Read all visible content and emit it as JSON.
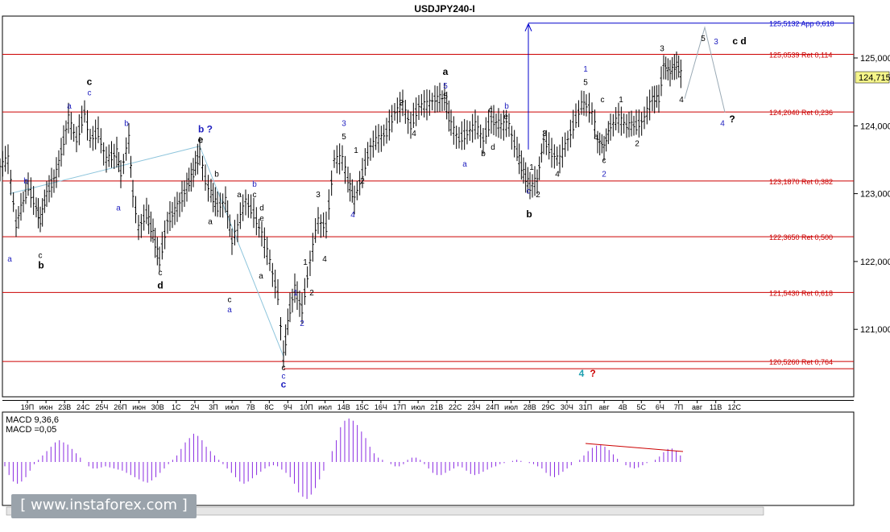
{
  "window": {
    "title": "USDJPY240-I"
  },
  "chart_data": {
    "type": "candlestick",
    "symbol": "USDJPY240-I",
    "price_axis": {
      "min": 120.0,
      "max": 125.5,
      "ticks": [
        "125,000",
        "124,000",
        "123,000",
        "122,000",
        "121,000"
      ],
      "tick_values": [
        125,
        124,
        123,
        122,
        121
      ]
    },
    "current_price": {
      "label": "124,715",
      "value": 124.715
    },
    "levels": [
      {
        "label": "125,5132 App 0,618",
        "value": 125.5132,
        "color": "#0000cc"
      },
      {
        "label": "125,0539 Ret 0,114",
        "value": 125.0539,
        "color": "#cc0000"
      },
      {
        "label": "124,2040 Ret 0,236",
        "value": 124.204,
        "color": "#cc0000"
      },
      {
        "label": "123,1870 Ret 0,382",
        "value": 123.187,
        "color": "#cc0000"
      },
      {
        "label": "122,3650 Ret 0,500",
        "value": 122.365,
        "color": "#cc0000"
      },
      {
        "label": "121,5430 Ret 0,618",
        "value": 121.543,
        "color": "#cc0000"
      },
      {
        "label": "120,5260 Ret 0,764",
        "value": 120.526,
        "color": "#cc0000"
      }
    ],
    "time_labels": [
      "19П",
      "июн",
      "23В",
      "24С",
      "25Ч",
      "26П",
      "июн",
      "30В",
      "1С",
      "2Ч",
      "3П",
      "июл",
      "7В",
      "8С",
      "9Ч",
      "10П",
      "июл",
      "14В",
      "15С",
      "16Ч",
      "17П",
      "июл",
      "21В",
      "22С",
      "23Ч",
      "24П",
      "июл",
      "28В",
      "29С",
      "30Ч",
      "31П",
      "авг",
      "4В",
      "5С",
      "6Ч",
      "7П",
      "авг",
      "11В",
      "12С"
    ],
    "price_path": [
      [
        0,
        123.4
      ],
      [
        10,
        123.5
      ],
      [
        20,
        122.55
      ],
      [
        35,
        123.1
      ],
      [
        45,
        122.8
      ],
      [
        50,
        122.6
      ],
      [
        58,
        123.0
      ],
      [
        70,
        123.3
      ],
      [
        85,
        124.1
      ],
      [
        95,
        123.8
      ],
      [
        105,
        124.2
      ],
      [
        112,
        123.8
      ],
      [
        122,
        123.9
      ],
      [
        132,
        123.5
      ],
      [
        145,
        123.6
      ],
      [
        150,
        123.3
      ],
      [
        160,
        123.8
      ],
      [
        165,
        123.0
      ],
      [
        172,
        122.5
      ],
      [
        182,
        122.7
      ],
      [
        190,
        122.4
      ],
      [
        198,
        122.0
      ],
      [
        208,
        122.6
      ],
      [
        220,
        122.8
      ],
      [
        232,
        123.1
      ],
      [
        240,
        123.3
      ],
      [
        248,
        123.6
      ],
      [
        255,
        123.2
      ],
      [
        262,
        123.0
      ],
      [
        270,
        122.8
      ],
      [
        280,
        122.9
      ],
      [
        288,
        122.3
      ],
      [
        295,
        122.5
      ],
      [
        305,
        122.9
      ],
      [
        315,
        122.7
      ],
      [
        325,
        122.4
      ],
      [
        335,
        122.0
      ],
      [
        345,
        121.5
      ],
      [
        352,
        120.6
      ],
      [
        360,
        121.3
      ],
      [
        366,
        121.6
      ],
      [
        375,
        121.3
      ],
      [
        385,
        122.0
      ],
      [
        395,
        122.6
      ],
      [
        405,
        122.5
      ],
      [
        415,
        123.5
      ],
      [
        425,
        123.5
      ],
      [
        432,
        123.2
      ],
      [
        440,
        122.9
      ],
      [
        450,
        123.3
      ],
      [
        460,
        123.7
      ],
      [
        470,
        123.8
      ],
      [
        480,
        123.9
      ],
      [
        490,
        124.2
      ],
      [
        500,
        124.3
      ],
      [
        510,
        124.0
      ],
      [
        520,
        124.3
      ],
      [
        530,
        124.3
      ],
      [
        540,
        124.4
      ],
      [
        552,
        124.4
      ],
      [
        560,
        124.0
      ],
      [
        570,
        123.8
      ],
      [
        580,
        123.9
      ],
      [
        590,
        124.0
      ],
      [
        600,
        123.8
      ],
      [
        610,
        124.1
      ],
      [
        622,
        124.0
      ],
      [
        632,
        124.0
      ],
      [
        642,
        123.6
      ],
      [
        650,
        123.3
      ],
      [
        658,
        123.1
      ],
      [
        667,
        123.2
      ],
      [
        675,
        123.8
      ],
      [
        685,
        123.6
      ],
      [
        695,
        123.5
      ],
      [
        705,
        123.8
      ],
      [
        715,
        124.1
      ],
      [
        722,
        124.3
      ],
      [
        728,
        124.3
      ],
      [
        735,
        124.2
      ],
      [
        742,
        123.8
      ],
      [
        750,
        123.7
      ],
      [
        758,
        124.0
      ],
      [
        768,
        124.1
      ],
      [
        778,
        124.0
      ],
      [
        790,
        124.0
      ],
      [
        800,
        124.1
      ],
      [
        810,
        124.4
      ],
      [
        818,
        124.4
      ],
      [
        824,
        124.9
      ],
      [
        832,
        124.8
      ],
      [
        840,
        124.9
      ],
      [
        848,
        124.7
      ]
    ],
    "projections": [
      {
        "path": [
          [
            850,
            124.4
          ],
          [
            875,
            125.45
          ],
          [
            900,
            124.2
          ]
        ],
        "color": "#9aaab5"
      },
      {
        "path": [
          [
            12,
            123.0
          ],
          [
            248,
            123.7
          ],
          [
            352,
            120.6
          ]
        ],
        "color": "#8ec5dc"
      }
    ],
    "wave_labels": [
      {
        "t": "a",
        "x": 12,
        "v": 122.0,
        "c": "#1f1fbf"
      },
      {
        "t": "b",
        "x": 32,
        "v": 123.15,
        "c": "#1f1fbf"
      },
      {
        "t": "c",
        "x": 50,
        "v": 122.05,
        "c": "#000"
      },
      {
        "t": "b",
        "x": 51,
        "v": 121.9,
        "c": "#000",
        "b": true
      },
      {
        "t": "a",
        "x": 86,
        "v": 124.25,
        "c": "#1f1fbf"
      },
      {
        "t": "c",
        "x": 111,
        "v": 124.45,
        "c": "#1f1fbf"
      },
      {
        "t": "c",
        "x": 111,
        "v": 124.6,
        "c": "#000",
        "b": true
      },
      {
        "t": "b",
        "x": 157,
        "v": 124.0,
        "c": "#1f1fbf"
      },
      {
        "t": "a",
        "x": 147,
        "v": 122.75,
        "c": "#1f1fbf"
      },
      {
        "t": "b ?",
        "x": 255,
        "v": 123.9,
        "c": "#1f1fbf",
        "b": true
      },
      {
        "t": "e",
        "x": 249,
        "v": 123.75,
        "c": "#000",
        "b": true
      },
      {
        "t": "c",
        "x": 199,
        "v": 121.8,
        "c": "#000"
      },
      {
        "t": "d",
        "x": 199,
        "v": 121.6,
        "c": "#000",
        "b": true
      },
      {
        "t": "b",
        "x": 269,
        "v": 123.25,
        "c": "#000"
      },
      {
        "t": "a",
        "x": 261,
        "v": 122.55,
        "c": "#000"
      },
      {
        "t": "c",
        "x": 285,
        "v": 121.4,
        "c": "#000"
      },
      {
        "t": "a",
        "x": 285,
        "v": 121.25,
        "c": "#1f1fbf"
      },
      {
        "t": "a",
        "x": 297,
        "v": 122.95,
        "c": "#000"
      },
      {
        "t": "b",
        "x": 316,
        "v": 123.1,
        "c": "#1f1fbf"
      },
      {
        "t": "c",
        "x": 316,
        "v": 122.95,
        "c": "#000"
      },
      {
        "t": "e",
        "x": 325,
        "v": 122.6,
        "c": "#000"
      },
      {
        "t": "d",
        "x": 325,
        "v": 122.75,
        "c": "#000"
      },
      {
        "t": "a",
        "x": 324,
        "v": 121.75,
        "c": "#000"
      },
      {
        "t": "c",
        "x": 352,
        "v": 120.4,
        "c": "#000"
      },
      {
        "t": "c",
        "x": 352,
        "v": 120.27,
        "c": "#1f1fbf"
      },
      {
        "t": "c",
        "x": 352,
        "v": 120.14,
        "c": "#1f1fbf",
        "b": true
      },
      {
        "t": "1",
        "x": 367,
        "v": 121.5,
        "c": "#1f1fbf"
      },
      {
        "t": "2",
        "x": 375,
        "v": 121.05,
        "c": "#1f1fbf"
      },
      {
        "t": "1",
        "x": 379,
        "v": 121.95,
        "c": "#000"
      },
      {
        "t": "2",
        "x": 387,
        "v": 121.5,
        "c": "#000"
      },
      {
        "t": "3",
        "x": 395,
        "v": 122.95,
        "c": "#000"
      },
      {
        "t": "4",
        "x": 403,
        "v": 122.0,
        "c": "#000"
      },
      {
        "t": "3",
        "x": 427,
        "v": 124.0,
        "c": "#1f1fbf"
      },
      {
        "t": "5",
        "x": 427,
        "v": 123.8,
        "c": "#000"
      },
      {
        "t": "4",
        "x": 438,
        "v": 122.65,
        "c": "#1f1fbf"
      },
      {
        "t": "1",
        "x": 442,
        "v": 123.6,
        "c": "#000"
      },
      {
        "t": "2",
        "x": 450,
        "v": 123.15,
        "c": "#000"
      },
      {
        "t": "3",
        "x": 498,
        "v": 124.3,
        "c": "#000"
      },
      {
        "t": "4",
        "x": 514,
        "v": 123.85,
        "c": "#000"
      },
      {
        "t": "a",
        "x": 553,
        "v": 124.75,
        "c": "#000",
        "b": true
      },
      {
        "t": "5",
        "x": 553,
        "v": 124.55,
        "c": "#1f1fbf"
      },
      {
        "t": "5",
        "x": 553,
        "v": 124.4,
        "c": "#000"
      },
      {
        "t": "a",
        "x": 577,
        "v": 123.4,
        "c": "#1f1fbf"
      },
      {
        "t": "b",
        "x": 600,
        "v": 123.55,
        "c": "#000"
      },
      {
        "t": "c",
        "x": 609,
        "v": 124.2,
        "c": "#000"
      },
      {
        "t": "d",
        "x": 612,
        "v": 123.65,
        "c": "#000"
      },
      {
        "t": "e",
        "x": 628,
        "v": 124.1,
        "c": "#000"
      },
      {
        "t": "b",
        "x": 629,
        "v": 124.25,
        "c": "#1f1fbf"
      },
      {
        "t": "1",
        "x": 660,
        "v": 123.35,
        "c": "#000"
      },
      {
        "t": "c",
        "x": 656,
        "v": 123.0,
        "c": "#1f1fbf"
      },
      {
        "t": "2",
        "x": 668,
        "v": 122.95,
        "c": "#000"
      },
      {
        "t": "b",
        "x": 657,
        "v": 122.65,
        "c": "#000",
        "b": true
      },
      {
        "t": "3",
        "x": 676,
        "v": 123.85,
        "c": "#000"
      },
      {
        "t": "4",
        "x": 692,
        "v": 123.25,
        "c": "#000"
      },
      {
        "t": "1",
        "x": 727,
        "v": 124.8,
        "c": "#1f1fbf"
      },
      {
        "t": "5",
        "x": 727,
        "v": 124.6,
        "c": "#000"
      },
      {
        "t": "c",
        "x": 748,
        "v": 124.35,
        "c": "#000"
      },
      {
        "t": "a",
        "x": 740,
        "v": 123.8,
        "c": "#000"
      },
      {
        "t": "c",
        "x": 750,
        "v": 123.45,
        "c": "#000"
      },
      {
        "t": "2",
        "x": 750,
        "v": 123.25,
        "c": "#1f1fbf"
      },
      {
        "t": "1",
        "x": 771,
        "v": 124.35,
        "c": "#000"
      },
      {
        "t": "2",
        "x": 791,
        "v": 123.7,
        "c": "#000"
      },
      {
        "t": "3",
        "x": 822,
        "v": 125.1,
        "c": "#000"
      },
      {
        "t": "4",
        "x": 846,
        "v": 124.35,
        "c": "#000"
      },
      {
        "t": "5",
        "x": 873,
        "v": 125.25,
        "c": "#000"
      },
      {
        "t": "3",
        "x": 889,
        "v": 125.2,
        "c": "#1f1fbf"
      },
      {
        "t": "c d",
        "x": 918,
        "v": 125.2,
        "c": "#000",
        "b": true
      },
      {
        "t": "4",
        "x": 897,
        "v": 124.0,
        "c": "#1f1fbf"
      },
      {
        "t": "?",
        "x": 909,
        "v": 124.05,
        "c": "#000",
        "b": true
      },
      {
        "t": "4",
        "x": 722,
        "v": 120.3,
        "c": "#1fa0b0",
        "b": true
      },
      {
        "t": "?",
        "x": 736,
        "v": 120.3,
        "c": "#cc0000",
        "b": true
      }
    ],
    "arrow": {
      "x": 656,
      "from": 123.65,
      "to": 125.5132,
      "color": "#0000cc"
    },
    "macd": {
      "label1": "MACD 9,36,6",
      "label2": "MACD =0,05",
      "footer": "MACD 9,36,6 ...",
      "histogram": [
        -0.2,
        -0.6,
        -0.9,
        -1.0,
        -0.9,
        -0.7,
        -0.4,
        -0.1,
        0.1,
        0.3,
        0.5,
        0.7,
        0.9,
        1.0,
        0.9,
        0.8,
        0.6,
        0.4,
        0.2,
        0.0,
        -0.2,
        -0.3,
        -0.3,
        -0.25,
        -0.2,
        -0.25,
        -0.3,
        -0.35,
        -0.4,
        -0.5,
        -0.6,
        -0.7,
        -0.8,
        -0.9,
        -0.95,
        -0.85,
        -0.7,
        -0.5,
        -0.3,
        -0.1,
        0.1,
        0.3,
        0.6,
        0.9,
        1.1,
        1.3,
        1.2,
        1.0,
        0.7,
        0.5,
        0.3,
        0.1,
        -0.1,
        -0.3,
        -0.5,
        -0.7,
        -0.9,
        -1.0,
        -0.9,
        -0.75,
        -0.6,
        -0.45,
        -0.3,
        -0.2,
        -0.15,
        -0.2,
        -0.35,
        -0.5,
        -0.7,
        -1.0,
        -1.4,
        -1.6,
        -1.7,
        -1.5,
        -1.2,
        -0.8,
        -0.4,
        0.0,
        0.5,
        1.0,
        1.6,
        1.9,
        2.0,
        1.9,
        1.7,
        1.4,
        1.1,
        0.7,
        0.4,
        0.2,
        0.1,
        0.0,
        -0.1,
        -0.2,
        -0.2,
        -0.1,
        0.1,
        0.2,
        0.2,
        0.1,
        -0.1,
        -0.3,
        -0.5,
        -0.6,
        -0.6,
        -0.5,
        -0.4,
        -0.3,
        -0.2,
        -0.25,
        -0.4,
        -0.55,
        -0.6,
        -0.55,
        -0.45,
        -0.35,
        -0.25,
        -0.2,
        -0.1,
        -0.05,
        0.0,
        0.05,
        0.1,
        0.05,
        0.0,
        -0.05,
        -0.1,
        -0.2,
        -0.3,
        -0.5,
        -0.65,
        -0.7,
        -0.6,
        -0.45,
        -0.3,
        -0.15,
        0.0,
        0.1,
        0.3,
        0.5,
        0.65,
        0.75,
        0.8,
        0.7,
        0.55,
        0.35,
        0.15,
        0.0,
        -0.15,
        -0.25,
        -0.3,
        -0.25,
        -0.15,
        -0.05,
        0.0,
        0.1,
        0.25,
        0.45,
        0.6,
        0.62,
        0.5,
        0.3
      ],
      "divergence": {
        "from": 0.95,
        "to": 0.6,
        "color": "#cc0000"
      }
    }
  }
}
